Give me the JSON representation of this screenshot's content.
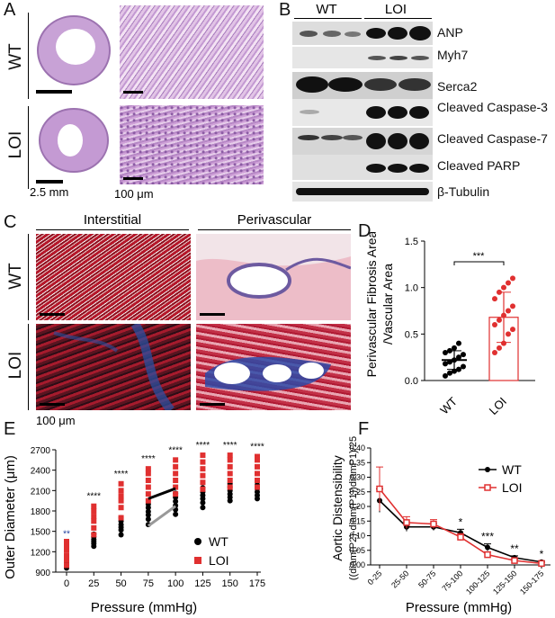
{
  "panels": {
    "A": "A",
    "B": "B",
    "C": "C",
    "D": "D",
    "E": "E",
    "F": "F"
  },
  "panelA": {
    "row1": "WT",
    "row2": "LOI",
    "scale1": "2.5 mm",
    "scale2": "100 μm"
  },
  "panelB": {
    "group1": "WT",
    "group2": "LOI",
    "bands": [
      "ANP",
      "Myh7",
      "Serca2",
      "Cleaved Caspase-3",
      "Cleaved Caspase-7",
      "Cleaved PARP",
      "β-Tubulin"
    ]
  },
  "panelC": {
    "col1": "Interstitial",
    "col2": "Perivascular",
    "row1": "WT",
    "row2": "LOI",
    "scale": "100 μm"
  },
  "chart_data": [
    {
      "type": "scatter",
      "panel": "D",
      "ylabel_line1": "Perivascular Fibrosis Area",
      "ylabel_line2": "/Vascular Area",
      "categories": [
        "WT",
        "LOI"
      ],
      "ylim": [
        0,
        1.5
      ],
      "yticks": [
        "0.0",
        "0.5",
        "1.0",
        "1.5"
      ],
      "significance": "***",
      "series": [
        {
          "name": "WT",
          "color": "#000000",
          "mean": 0.22,
          "sd": 0.1,
          "values": [
            0.05,
            0.08,
            0.1,
            0.12,
            0.15,
            0.18,
            0.2,
            0.22,
            0.25,
            0.28,
            0.3,
            0.32,
            0.35,
            0.4
          ]
        },
        {
          "name": "LOI",
          "color": "#e03030",
          "mean": 0.68,
          "sd": 0.27,
          "values": [
            0.3,
            0.35,
            0.4,
            0.5,
            0.55,
            0.6,
            0.65,
            0.7,
            0.75,
            0.8,
            0.88,
            0.95,
            1.0,
            1.05,
            1.1
          ]
        }
      ]
    },
    {
      "type": "scatter",
      "panel": "E",
      "xlabel": "Pressure (mmHg)",
      "ylabel": "Outer Diameter (μm)",
      "categories": [
        "0",
        "25",
        "50",
        "75",
        "100",
        "125",
        "150",
        "175"
      ],
      "ylim": [
        900,
        2700
      ],
      "yticks": [
        "900",
        "1200",
        "1500",
        "1800",
        "2100",
        "2400",
        "2700"
      ],
      "significance": [
        "**",
        "****",
        "****",
        "****",
        "****",
        "****",
        "****",
        "****"
      ],
      "legend": [
        "WT",
        "LOI"
      ],
      "series": [
        {
          "name": "WT",
          "color": "#000000",
          "values": [
            [
              960,
              1000,
              1030,
              1060,
              1090,
              1120
            ],
            [
              1280,
              1320,
              1350,
              1380,
              1420,
              1460
            ],
            [
              1450,
              1520,
              1560,
              1600,
              1650,
              1700
            ],
            [
              1600,
              1680,
              1740,
              1790,
              1850,
              1900
            ],
            [
              1750,
              1820,
              1880,
              1940,
              2000,
              2060
            ],
            [
              1850,
              1920,
              1980,
              2030,
              2080,
              2140
            ],
            [
              1950,
              2000,
              2050,
              2100,
              2150,
              2200
            ],
            [
              1980,
              2030,
              2080,
              2130,
              2180,
              2230
            ]
          ]
        },
        {
          "name": "LOI",
          "color": "#e03030",
          "values": [
            [
              1000,
              1080,
              1150,
              1230,
              1290,
              1350
            ],
            [
              1450,
              1550,
              1650,
              1720,
              1800,
              1870
            ],
            [
              1700,
              1850,
              1950,
              2020,
              2100,
              2200
            ],
            [
              1950,
              2050,
              2150,
              2250,
              2350,
              2420
            ],
            [
              2050,
              2150,
              2250,
              2350,
              2450,
              2550
            ],
            [
              2120,
              2220,
              2320,
              2420,
              2520,
              2620
            ],
            [
              2150,
              2250,
              2350,
              2450,
              2550,
              2620
            ],
            [
              2150,
              2250,
              2350,
              2450,
              2550,
              2600
            ]
          ]
        }
      ],
      "fit_lines": [
        {
          "color": "#000000",
          "from": [
            75,
            1980
          ],
          "to": [
            100,
            2130
          ]
        },
        {
          "color": "#999999",
          "from": [
            75,
            1580
          ],
          "to": [
            100,
            1870
          ]
        }
      ]
    },
    {
      "type": "line",
      "panel": "F",
      "xlabel": "Pressure (mmHg)",
      "ylabel_line1": "Aortic Distensibility",
      "ylabel_line2": "((diam(P2)-diam(P1))diamP1)/25",
      "categories": [
        "0-25",
        "25-50",
        "50-75",
        "75-100",
        "100-125",
        "125-150",
        "150-175"
      ],
      "ylim": [
        0,
        0.4
      ],
      "yticks": [
        "0.00",
        "0.05",
        "0.10",
        "0.15",
        "0.20",
        "0.25",
        "0.30",
        "0.35",
        "0.40"
      ],
      "significance": [
        "",
        "",
        "",
        "*",
        "***",
        "**",
        "*"
      ],
      "legend": [
        "WT",
        "LOI"
      ],
      "series": [
        {
          "name": "WT",
          "color": "#000000",
          "values": [
            0.22,
            0.13,
            0.13,
            0.11,
            0.06,
            0.025,
            0.01
          ],
          "err": [
            0.04,
            0.015,
            0.012,
            0.012,
            0.012,
            0.006,
            0.003
          ]
        },
        {
          "name": "LOI",
          "color": "#e03030",
          "values": [
            0.26,
            0.145,
            0.14,
            0.095,
            0.035,
            0.015,
            0.005
          ],
          "err": [
            0.075,
            0.02,
            0.015,
            0.012,
            0.01,
            0.005,
            0.003
          ]
        }
      ]
    }
  ]
}
